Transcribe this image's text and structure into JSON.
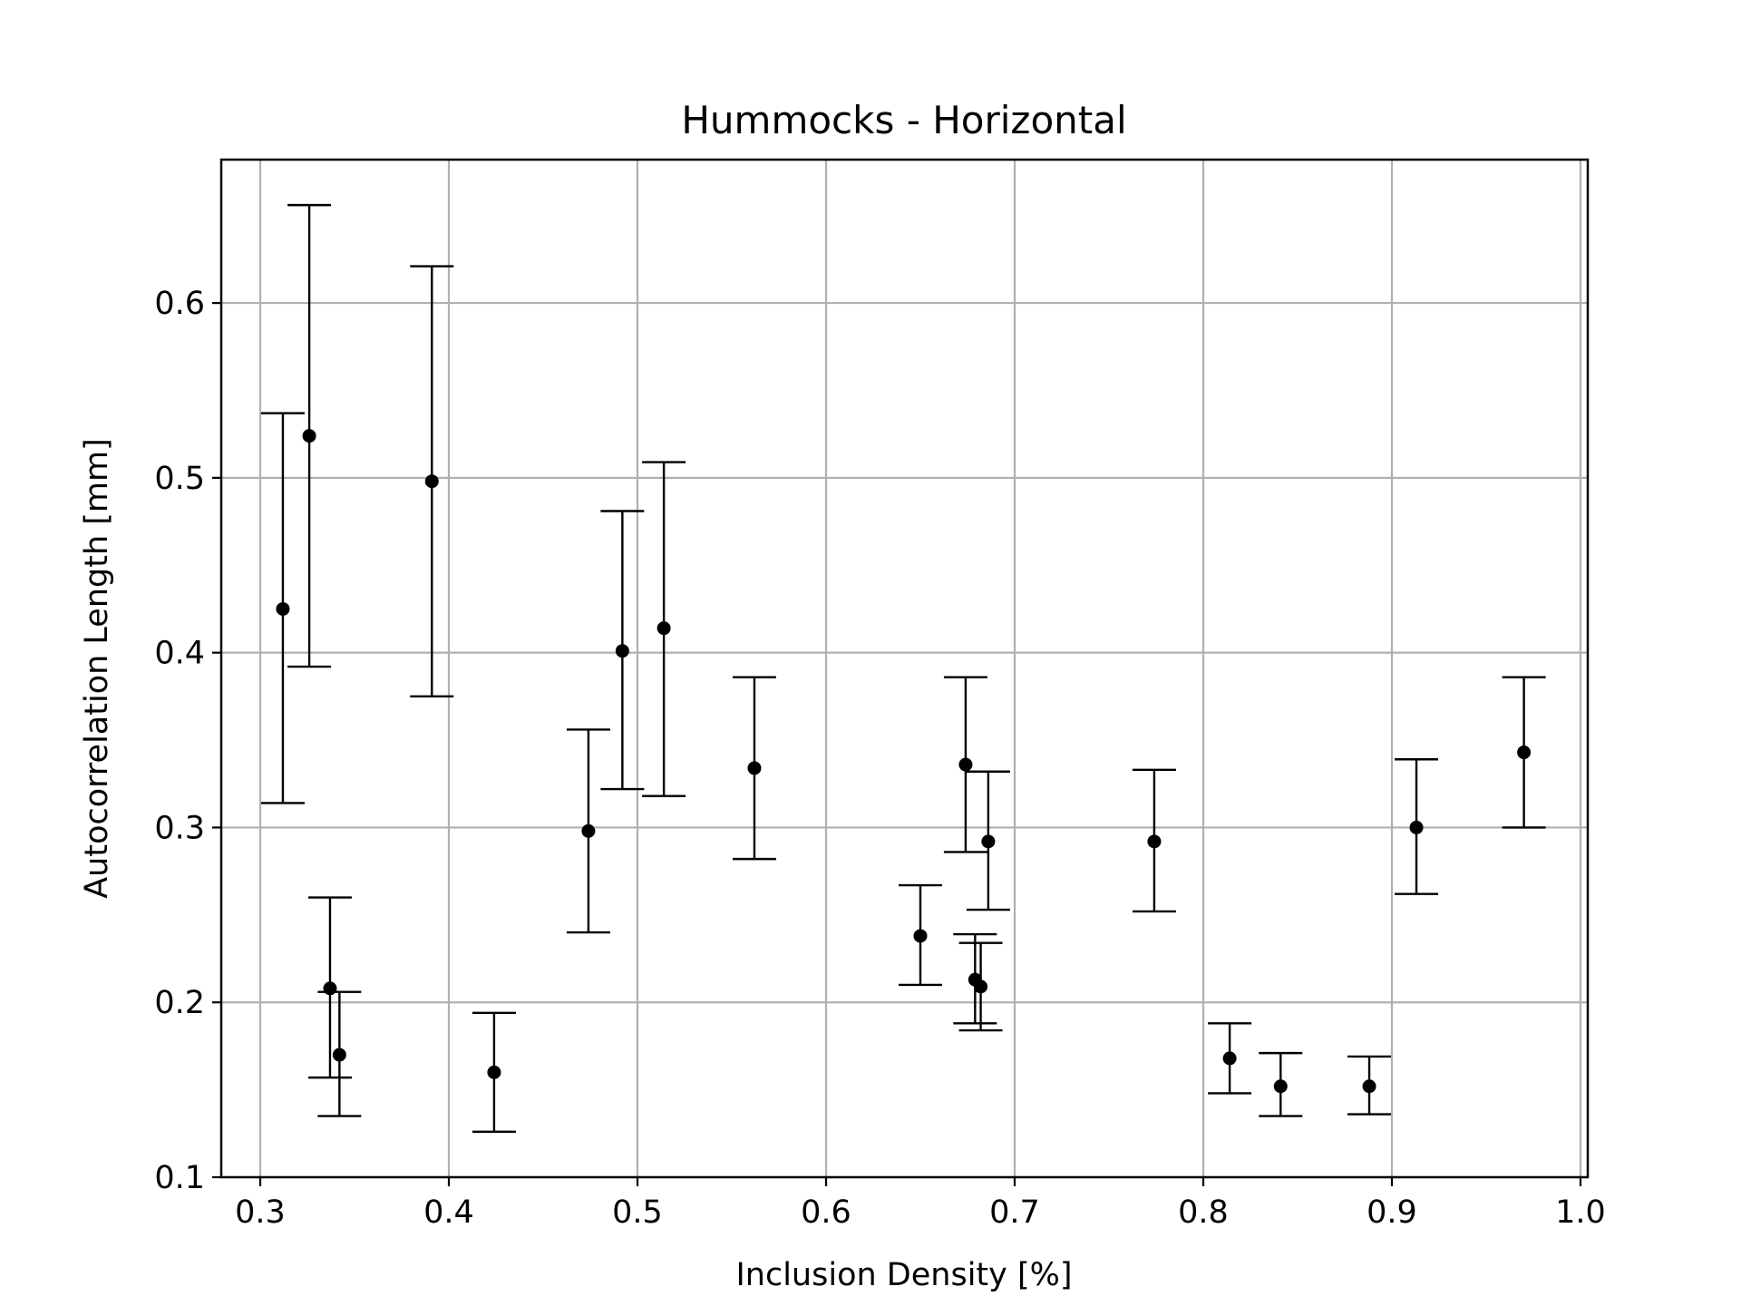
{
  "chart_data": {
    "type": "scatter",
    "title": "Hummocks - Horizontal",
    "xlabel": "Inclusion Density [%]",
    "ylabel": "Autocorrelation Length [mm]",
    "xlim": [
      0.28,
      1.0
    ],
    "ylim": [
      0.1,
      0.682
    ],
    "xticks": [
      0.3,
      0.4,
      0.5,
      0.6,
      0.7,
      0.8,
      0.9,
      1.0
    ],
    "xtick_labels": [
      "0.3",
      "0.4",
      "0.5",
      "0.6",
      "0.7",
      "0.8",
      "0.9",
      "1.0"
    ],
    "yticks": [
      0.1,
      0.2,
      0.3,
      0.4,
      0.5,
      0.6
    ],
    "ytick_labels": [
      "0.1",
      "0.2",
      "0.3",
      "0.4",
      "0.5",
      "0.6"
    ],
    "grid": true,
    "marker_color": "#000000",
    "error_bar_color": "#000000",
    "points": [
      {
        "x": 0.312,
        "y": 0.425,
        "ylow": 0.314,
        "yhigh": 0.537
      },
      {
        "x": 0.326,
        "y": 0.524,
        "ylow": 0.392,
        "yhigh": 0.656
      },
      {
        "x": 0.337,
        "y": 0.208,
        "ylow": 0.157,
        "yhigh": 0.26
      },
      {
        "x": 0.342,
        "y": 0.17,
        "ylow": 0.135,
        "yhigh": 0.206
      },
      {
        "x": 0.391,
        "y": 0.498,
        "ylow": 0.375,
        "yhigh": 0.621
      },
      {
        "x": 0.424,
        "y": 0.16,
        "ylow": 0.126,
        "yhigh": 0.194
      },
      {
        "x": 0.474,
        "y": 0.298,
        "ylow": 0.24,
        "yhigh": 0.356
      },
      {
        "x": 0.492,
        "y": 0.401,
        "ylow": 0.322,
        "yhigh": 0.481
      },
      {
        "x": 0.514,
        "y": 0.414,
        "ylow": 0.318,
        "yhigh": 0.509
      },
      {
        "x": 0.562,
        "y": 0.334,
        "ylow": 0.282,
        "yhigh": 0.386
      },
      {
        "x": 0.65,
        "y": 0.238,
        "ylow": 0.21,
        "yhigh": 0.267
      },
      {
        "x": 0.674,
        "y": 0.336,
        "ylow": 0.286,
        "yhigh": 0.386
      },
      {
        "x": 0.679,
        "y": 0.213,
        "ylow": 0.188,
        "yhigh": 0.239
      },
      {
        "x": 0.682,
        "y": 0.209,
        "ylow": 0.184,
        "yhigh": 0.234
      },
      {
        "x": 0.686,
        "y": 0.292,
        "ylow": 0.253,
        "yhigh": 0.332
      },
      {
        "x": 0.774,
        "y": 0.292,
        "ylow": 0.252,
        "yhigh": 0.333
      },
      {
        "x": 0.814,
        "y": 0.168,
        "ylow": 0.148,
        "yhigh": 0.188
      },
      {
        "x": 0.841,
        "y": 0.152,
        "ylow": 0.135,
        "yhigh": 0.171
      },
      {
        "x": 0.888,
        "y": 0.152,
        "ylow": 0.136,
        "yhigh": 0.169
      },
      {
        "x": 0.913,
        "y": 0.3,
        "ylow": 0.262,
        "yhigh": 0.339
      },
      {
        "x": 0.97,
        "y": 0.343,
        "ylow": 0.3,
        "yhigh": 0.386
      }
    ]
  }
}
